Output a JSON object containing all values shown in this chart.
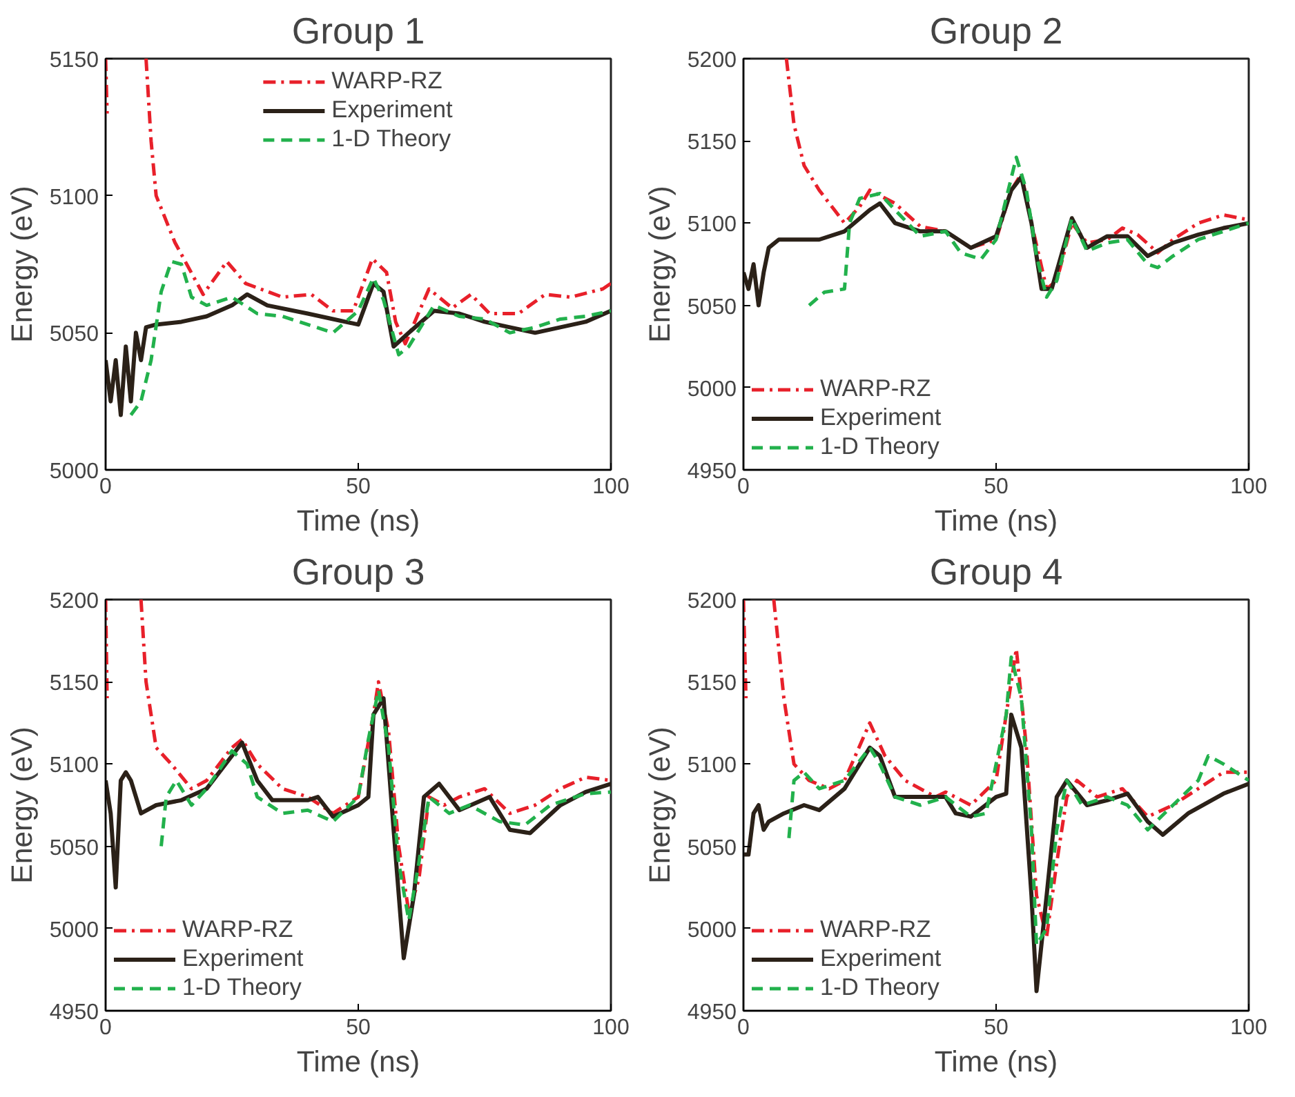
{
  "chart_data": [
    {
      "type": "line",
      "title": "Group 1",
      "xlabel": "Time (ns)",
      "ylabel": "Energy (eV)",
      "xlim": [
        0,
        100
      ],
      "xticks": [
        0,
        50,
        100
      ],
      "ylim": [
        5000,
        5150
      ],
      "yticks": [
        5000,
        5050,
        5100,
        5150
      ],
      "grid": false,
      "legend": "top",
      "series": [
        {
          "name": "WARP-RZ",
          "color": "#e8202a",
          "line_style": "dashdot",
          "x": [
            0,
            0.3,
            4,
            8,
            9,
            10,
            13.7,
            19.3,
            24,
            27.7,
            35,
            40.7,
            45,
            49,
            52.8,
            55.6,
            57.4,
            59.3,
            64,
            68.6,
            72.3,
            76,
            81.7,
            87,
            92,
            98.4,
            100
          ],
          "values": [
            5150,
            5130,
            null,
            5150,
            5120,
            5100,
            5083,
            5064,
            5076,
            5068,
            5063,
            5064,
            5058,
            5058,
            5077,
            5072,
            5054,
            5046,
            5066,
            5059,
            5064,
            5057,
            5057,
            5064,
            5063,
            5066,
            5068
          ]
        },
        {
          "name": "Experiment",
          "color": "#2b2118",
          "line_style": "solid",
          "x": [
            0,
            1,
            2,
            3,
            4,
            5,
            6,
            7,
            8,
            10,
            15,
            20,
            25,
            28,
            32,
            40,
            45,
            50,
            53,
            55,
            57,
            60,
            65,
            70,
            75,
            80,
            85,
            90,
            95,
            100
          ],
          "values": [
            5040,
            5025,
            5040,
            5020,
            5045,
            5025,
            5050,
            5040,
            5052,
            5053,
            5054,
            5056,
            5060,
            5064,
            5060,
            5057,
            5055,
            5053,
            5068,
            5065,
            5045,
            5050,
            5058,
            5057,
            5054,
            5052,
            5050,
            5052,
            5054,
            5058
          ]
        },
        {
          "name": "1-D Theory",
          "color": "#22b14c",
          "line_style": "dashed",
          "x": [
            5,
            7,
            9,
            11,
            13,
            15,
            17,
            20,
            25,
            30,
            35,
            40,
            45,
            50,
            53,
            55,
            58,
            60,
            65,
            70,
            75,
            80,
            85,
            90,
            95,
            100
          ],
          "values": [
            5020,
            5025,
            5040,
            5065,
            5076,
            5075,
            5063,
            5060,
            5063,
            5057,
            5056,
            5053,
            5050,
            5058,
            5070,
            5062,
            5042,
            5045,
            5060,
            5056,
            5055,
            5050,
            5052,
            5055,
            5056,
            5058
          ]
        }
      ]
    },
    {
      "type": "line",
      "title": "Group 2",
      "xlabel": "Time (ns)",
      "ylabel": "Energy (eV)",
      "xlim": [
        0,
        100
      ],
      "xticks": [
        0,
        50,
        100
      ],
      "ylim": [
        4950,
        5200
      ],
      "yticks": [
        4950,
        5000,
        5050,
        5100,
        5150,
        5200
      ],
      "grid": false,
      "legend": "bottom left",
      "series": [
        {
          "name": "WARP-RZ",
          "color": "#e8202a",
          "line_style": "dashdot",
          "x": [
            8.5,
            10,
            12,
            15,
            18,
            20,
            23,
            25,
            30,
            35,
            40,
            45,
            50,
            53,
            55,
            57,
            60,
            62,
            65,
            68,
            72,
            75,
            78,
            82,
            85,
            90,
            95,
            100
          ],
          "values": [
            5200,
            5160,
            5135,
            5120,
            5108,
            5100,
            5110,
            5120,
            5112,
            5098,
            5095,
            5085,
            5090,
            5120,
            5130,
            5100,
            5060,
            5065,
            5100,
            5088,
            5090,
            5097,
            5093,
            5082,
            5090,
            5100,
            5105,
            5102
          ]
        },
        {
          "name": "Experiment",
          "color": "#2b2118",
          "line_style": "solid",
          "x": [
            0,
            1,
            2,
            3,
            4,
            5,
            7,
            10,
            15,
            20,
            25,
            27,
            30,
            35,
            40,
            45,
            50,
            53,
            55,
            57,
            59,
            61,
            65,
            68,
            72,
            76,
            80,
            85,
            90,
            95,
            100
          ],
          "values": [
            5070,
            5060,
            5075,
            5050,
            5070,
            5085,
            5090,
            5090,
            5090,
            5095,
            5108,
            5112,
            5100,
            5095,
            5095,
            5085,
            5092,
            5120,
            5128,
            5100,
            5060,
            5060,
            5103,
            5085,
            5092,
            5092,
            5080,
            5088,
            5093,
            5097,
            5100
          ]
        },
        {
          "name": "1-D Theory",
          "color": "#22b14c",
          "line_style": "dashed",
          "x": [
            13,
            16,
            20,
            21,
            23,
            27,
            30,
            35,
            40,
            43,
            47,
            50,
            54,
            56,
            58,
            60,
            62,
            65,
            68,
            72,
            76,
            80,
            82,
            85,
            90,
            95,
            100
          ],
          "values": [
            5050,
            5058,
            5060,
            5100,
            5115,
            5118,
            5108,
            5092,
            5095,
            5082,
            5078,
            5090,
            5140,
            5120,
            5080,
            5055,
            5065,
            5103,
            5083,
            5088,
            5090,
            5075,
            5073,
            5080,
            5090,
            5095,
            5100
          ]
        }
      ]
    },
    {
      "type": "line",
      "title": "Group 3",
      "xlabel": "Time (ns)",
      "ylabel": "Energy (eV)",
      "xlim": [
        0,
        100
      ],
      "xticks": [
        0,
        50,
        100
      ],
      "ylim": [
        4950,
        5200
      ],
      "yticks": [
        4950,
        5000,
        5050,
        5100,
        5150,
        5200
      ],
      "grid": false,
      "legend": "bottom left",
      "series": [
        {
          "name": "WARP-RZ",
          "color": "#e8202a",
          "line_style": "dashdot",
          "x": [
            0,
            0.3,
            4,
            7,
            8,
            10,
            13,
            17,
            20,
            25,
            27,
            30,
            35,
            40,
            45,
            50,
            53,
            54,
            56,
            58,
            60,
            62,
            64,
            67,
            70,
            75,
            80,
            85,
            90,
            95,
            100
          ],
          "values": [
            5200,
            5140,
            null,
            5200,
            5150,
            5110,
            5100,
            5085,
            5090,
            5110,
            5115,
            5100,
            5085,
            5080,
            5070,
            5080,
            5130,
            5150,
            5120,
            5050,
            5010,
            5030,
            5080,
            5075,
            5080,
            5085,
            5070,
            5075,
            5085,
            5092,
            5090
          ]
        },
        {
          "name": "Experiment",
          "color": "#2b2118",
          "line_style": "solid",
          "x": [
            0,
            1,
            2,
            3,
            4,
            5,
            7,
            10,
            15,
            20,
            25,
            27,
            30,
            33,
            40,
            42,
            45,
            50,
            52,
            53,
            55,
            57,
            59,
            61,
            63,
            66,
            70,
            76,
            80,
            84,
            90,
            95,
            100
          ],
          "values": [
            5090,
            5070,
            5025,
            5090,
            5095,
            5090,
            5070,
            5075,
            5078,
            5085,
            5105,
            5113,
            5090,
            5078,
            5078,
            5080,
            5068,
            5075,
            5080,
            5130,
            5140,
            5060,
            4982,
            5020,
            5080,
            5088,
            5072,
            5080,
            5060,
            5058,
            5075,
            5083,
            5088
          ]
        },
        {
          "name": "1-D Theory",
          "color": "#22b14c",
          "line_style": "dashed",
          "x": [
            11,
            12,
            14,
            17,
            20,
            25,
            28,
            30,
            35,
            40,
            45,
            50,
            52,
            54,
            56,
            58,
            60,
            62,
            64,
            68,
            72,
            78,
            83,
            88,
            95,
            100
          ],
          "values": [
            5050,
            5080,
            5090,
            5075,
            5085,
            5108,
            5100,
            5080,
            5070,
            5072,
            5065,
            5080,
            5115,
            5145,
            5110,
            5040,
            5005,
            5040,
            5080,
            5070,
            5075,
            5065,
            5063,
            5075,
            5082,
            5083
          ]
        }
      ]
    },
    {
      "type": "line",
      "title": "Group 4",
      "xlabel": "Time (ns)",
      "ylabel": "Energy (eV)",
      "xlim": [
        0,
        100
      ],
      "xticks": [
        0,
        50,
        100
      ],
      "ylim": [
        4950,
        5200
      ],
      "yticks": [
        4950,
        5000,
        5050,
        5100,
        5150,
        5200
      ],
      "grid": false,
      "legend": "bottom left",
      "series": [
        {
          "name": "WARP-RZ",
          "color": "#e8202a",
          "line_style": "dashdot",
          "x": [
            0,
            0.5,
            3,
            6,
            8,
            10,
            13,
            17,
            20,
            25,
            28,
            32,
            38,
            40,
            45,
            50,
            53,
            54,
            56,
            58,
            60,
            62,
            64,
            66,
            70,
            75,
            80,
            85,
            90,
            95,
            100
          ],
          "values": [
            5200,
            5140,
            null,
            5200,
            5140,
            5100,
            5090,
            5085,
            5090,
            5125,
            5105,
            5090,
            5080,
            5083,
            5075,
            5090,
            5150,
            5170,
            5110,
            5020,
            4995,
            5040,
            5080,
            5090,
            5080,
            5085,
            5068,
            5075,
            5085,
            5095,
            5095
          ]
        },
        {
          "name": "Experiment",
          "color": "#2b2118",
          "line_style": "solid",
          "x": [
            0,
            1,
            2,
            3,
            4,
            5,
            8,
            12,
            15,
            20,
            25,
            27,
            30,
            40,
            42,
            45,
            50,
            52,
            53,
            55,
            57,
            58,
            60,
            62,
            64,
            68,
            72,
            76,
            80,
            83,
            88,
            95,
            100
          ],
          "values": [
            5045,
            5045,
            5070,
            5075,
            5060,
            5065,
            5070,
            5075,
            5072,
            5085,
            5110,
            5105,
            5080,
            5080,
            5070,
            5068,
            5080,
            5082,
            5130,
            5110,
            5020,
            4962,
            5020,
            5080,
            5090,
            5075,
            5078,
            5082,
            5065,
            5057,
            5070,
            5082,
            5088
          ]
        },
        {
          "name": "1-D Theory",
          "color": "#22b14c",
          "line_style": "dashed",
          "x": [
            9,
            10,
            12,
            15,
            20,
            25,
            27,
            30,
            35,
            40,
            45,
            48,
            52,
            53,
            55,
            57,
            58,
            60,
            62,
            64,
            67,
            72,
            76,
            80,
            85,
            90,
            92,
            95,
            100
          ],
          "values": [
            5055,
            5090,
            5095,
            5085,
            5090,
            5110,
            5100,
            5080,
            5075,
            5080,
            5068,
            5070,
            5130,
            5165,
            5140,
            5060,
            4990,
            5000,
            5060,
            5090,
            5075,
            5080,
            5075,
            5060,
            5075,
            5090,
            5105,
            5100,
            5090
          ]
        }
      ]
    }
  ]
}
